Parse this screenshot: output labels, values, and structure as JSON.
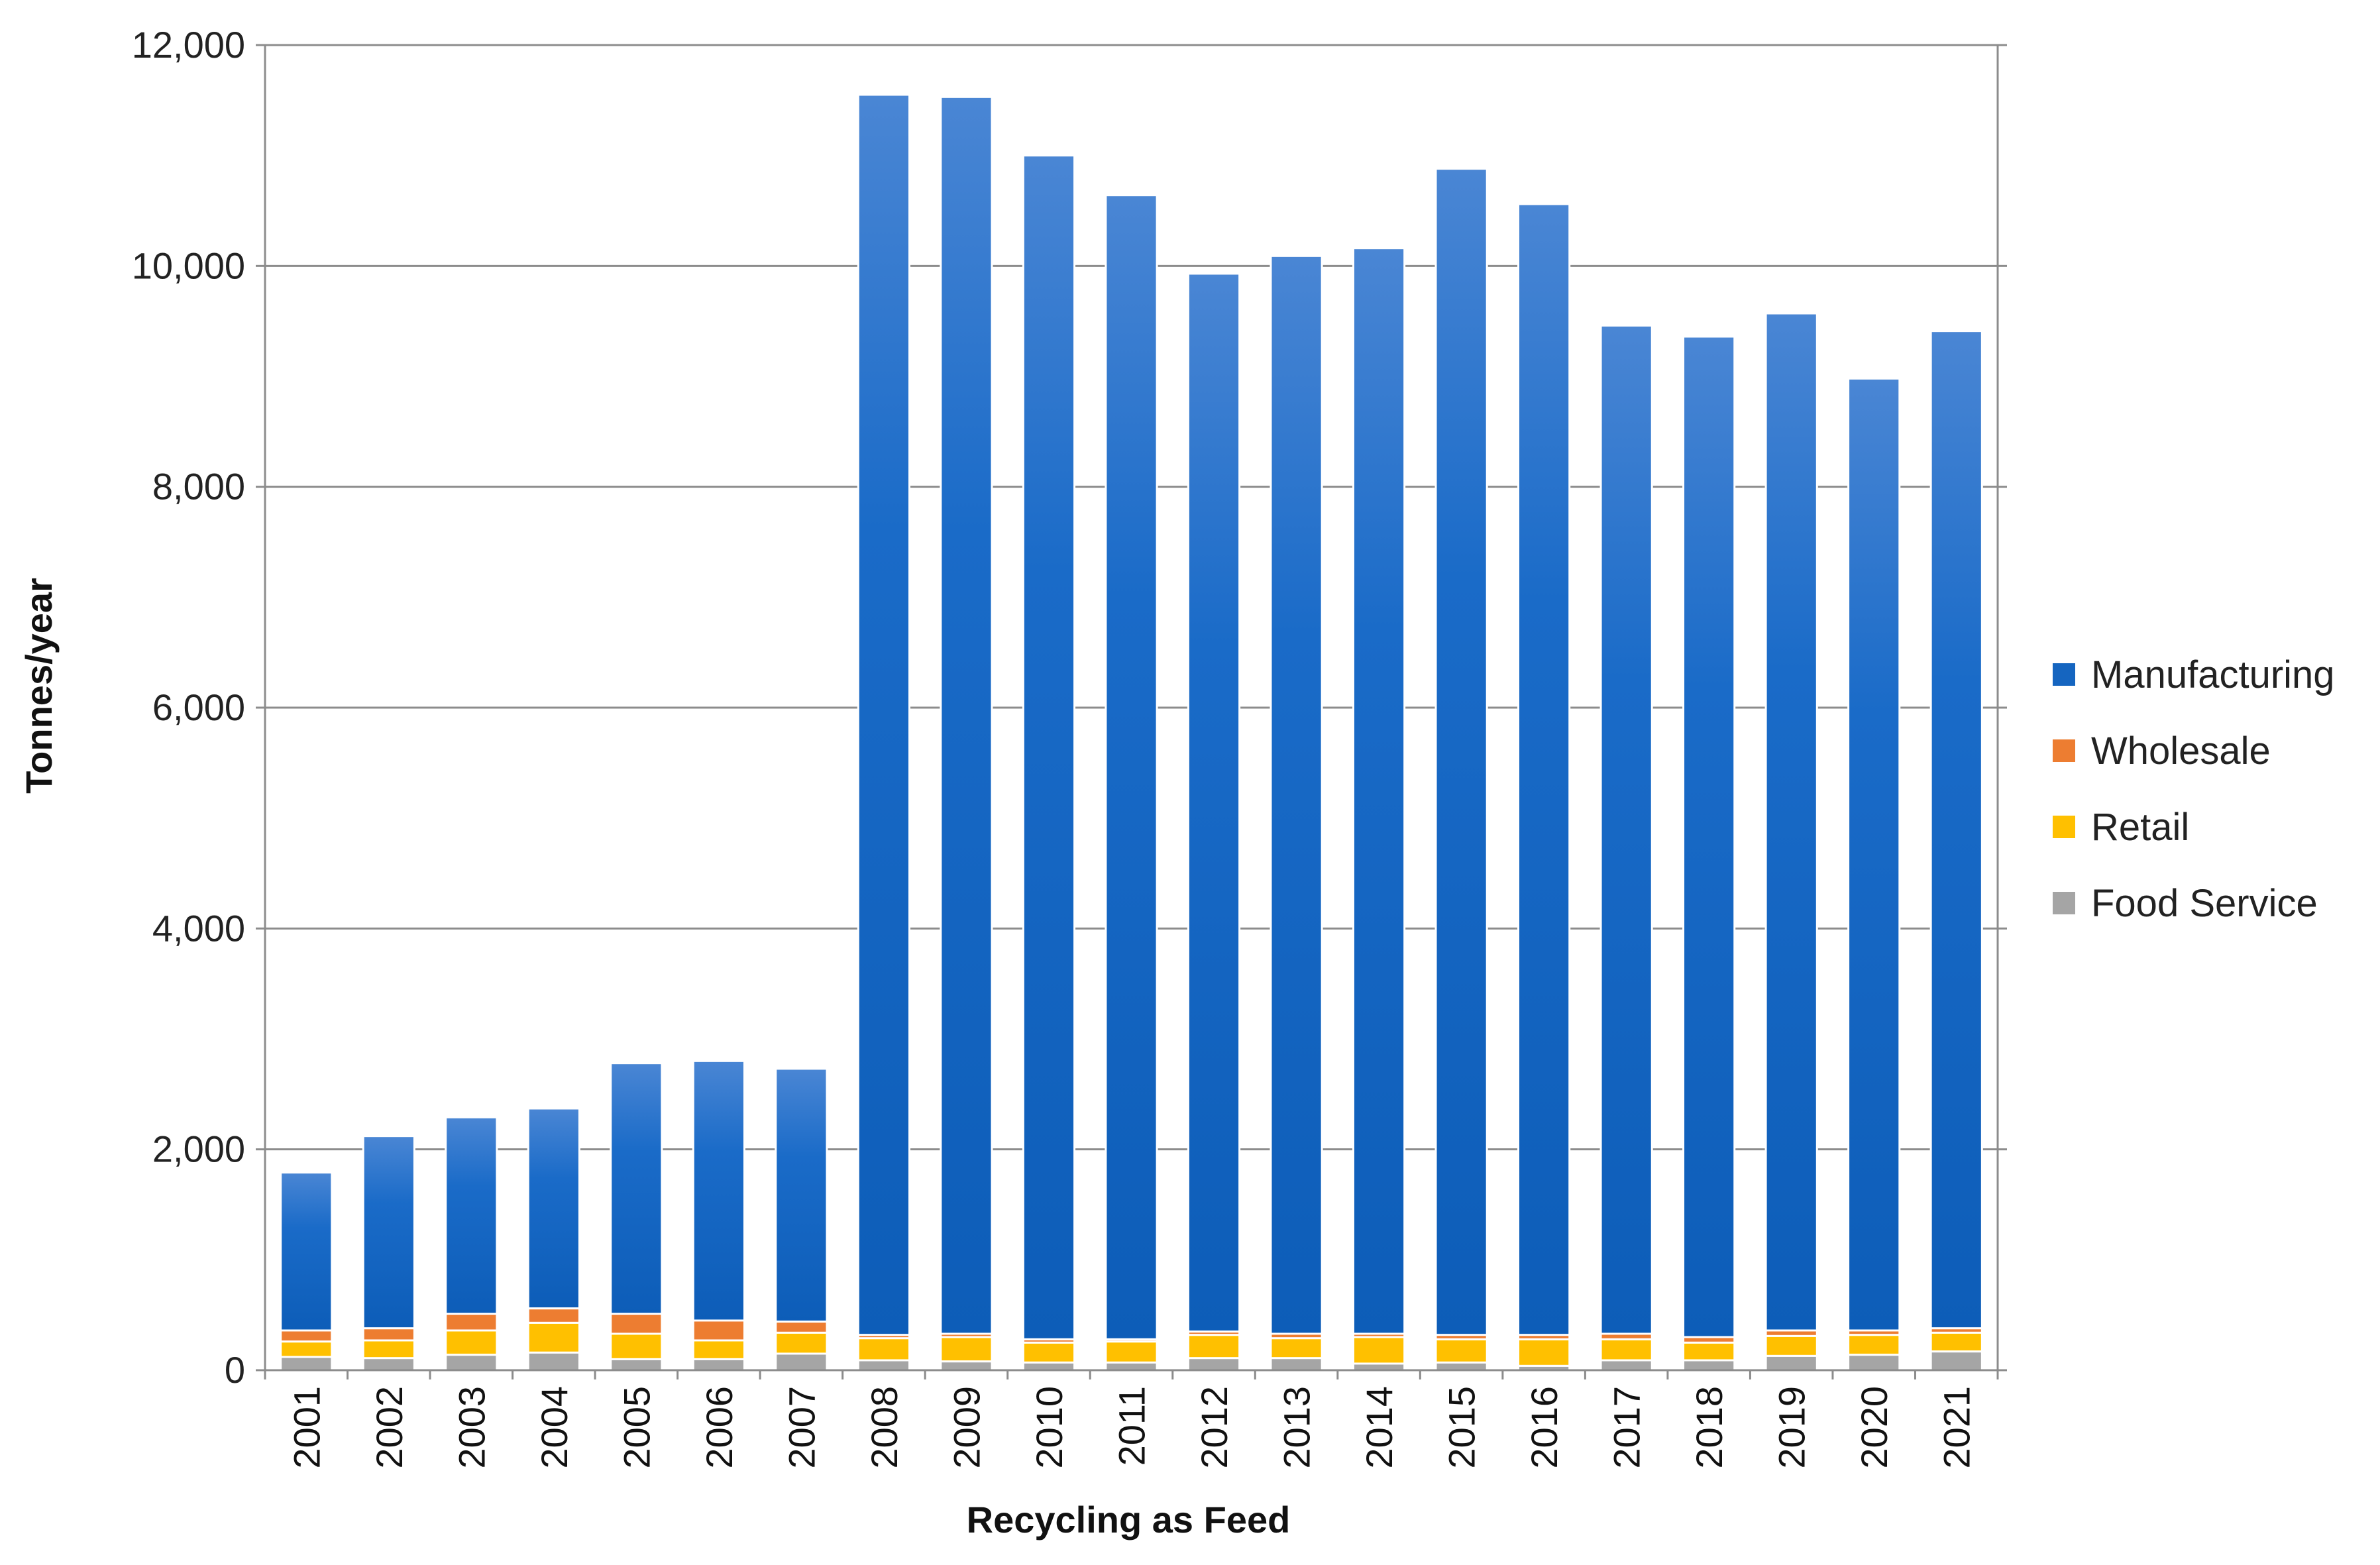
{
  "chart_data": {
    "type": "bar",
    "stacked": true,
    "title": "",
    "xlabel": "Recycling as Feed",
    "ylabel": "Tonnes/year",
    "ylim": [
      0,
      12000
    ],
    "yticks": [
      0,
      2000,
      4000,
      6000,
      8000,
      10000,
      12000
    ],
    "ytick_labels": [
      "0",
      "2,000",
      "4,000",
      "6,000",
      "8,000",
      "10,000",
      "12,000"
    ],
    "grid": "horizontal",
    "legend_placement": "right",
    "categories": [
      "2001",
      "2002",
      "2003",
      "2004",
      "2005",
      "2006",
      "2007",
      "2008",
      "2009",
      "2010",
      "2011",
      "2012",
      "2013",
      "2014",
      "2015",
      "2016",
      "2017",
      "2018",
      "2019",
      "2020",
      "2021"
    ],
    "series": [
      {
        "name": "Food Service",
        "color": "#a5a5a5",
        "values": [
          120,
          110,
          140,
          160,
          100,
          100,
          150,
          90,
          80,
          70,
          70,
          110,
          110,
          60,
          70,
          40,
          90,
          90,
          130,
          140,
          170
        ]
      },
      {
        "name": "Retail",
        "color": "#ffc000",
        "values": [
          140,
          160,
          220,
          270,
          230,
          170,
          190,
          200,
          220,
          180,
          190,
          210,
          180,
          240,
          210,
          240,
          190,
          160,
          180,
          180,
          170
        ]
      },
      {
        "name": "Wholesale",
        "color": "#ed7d31",
        "values": [
          100,
          110,
          150,
          130,
          180,
          180,
          100,
          30,
          30,
          30,
          20,
          30,
          40,
          30,
          40,
          40,
          50,
          50,
          50,
          40,
          40
        ]
      },
      {
        "name": "Manufacturing",
        "color": "#1565c0",
        "values": [
          1430,
          1740,
          1780,
          1810,
          2270,
          2350,
          2290,
          11230,
          11200,
          10720,
          10360,
          9580,
          9760,
          9830,
          10560,
          10240,
          9130,
          9060,
          9210,
          8620,
          9030
        ]
      }
    ],
    "legend_order": [
      "Manufacturing",
      "Wholesale",
      "Retail",
      "Food Service"
    ]
  }
}
